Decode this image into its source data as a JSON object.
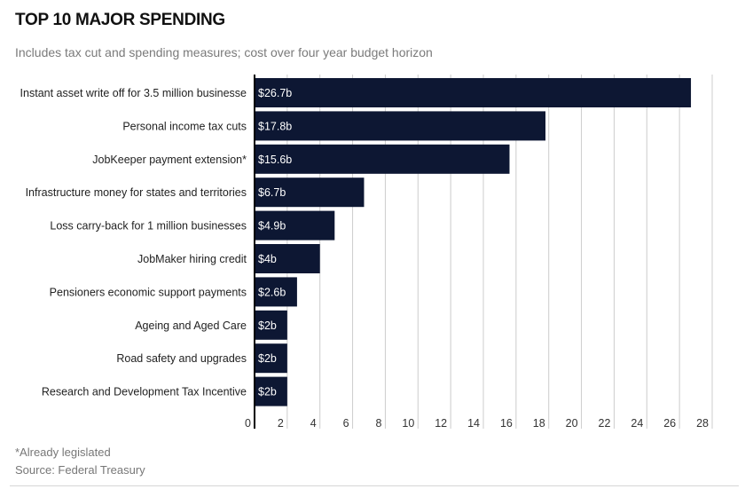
{
  "header": {
    "title": "TOP 10 MAJOR SPENDING",
    "subtitle": "Includes tax cut and spending measures; cost over four year budget horizon"
  },
  "footer": {
    "note": "*Already legislated",
    "source": "Source: Federal Treasury"
  },
  "colors": {
    "bar": "#0d1733",
    "grid": "#cccccc",
    "axis": "#000000"
  },
  "chart_data": {
    "type": "bar",
    "orientation": "horizontal",
    "title": "TOP 10 MAJOR SPENDING",
    "subtitle": "Includes tax cut and spending measures; cost over four year budget horizon",
    "xlabel": "",
    "ylabel": "",
    "unit": "$ billion",
    "categories": [
      "Instant asset write off for 3.5 million businesse",
      "Personal income tax cuts",
      "JobKeeper payment extension*",
      "Infrastructure money for states and territories",
      "Loss carry-back for 1 million businesses",
      "JobMaker hiring credit",
      "Pensioners economic support payments",
      "Ageing and Aged Care",
      "Road safety and upgrades",
      "Research and Development Tax Incentive"
    ],
    "values": [
      26.7,
      17.8,
      15.6,
      6.7,
      4.9,
      4,
      2.6,
      2,
      2,
      2
    ],
    "data_labels": [
      "$26.7b",
      "$17.8b",
      "$15.6b",
      "$6.7b",
      "$4.9b",
      "$4b",
      "$2.6b",
      "$2b",
      "$2b",
      "$2b"
    ],
    "xlim": [
      0,
      28
    ],
    "xticks": [
      0,
      2,
      4,
      6,
      8,
      10,
      12,
      14,
      16,
      18,
      20,
      22,
      24,
      26,
      28
    ],
    "grid": true,
    "legend": "none"
  }
}
